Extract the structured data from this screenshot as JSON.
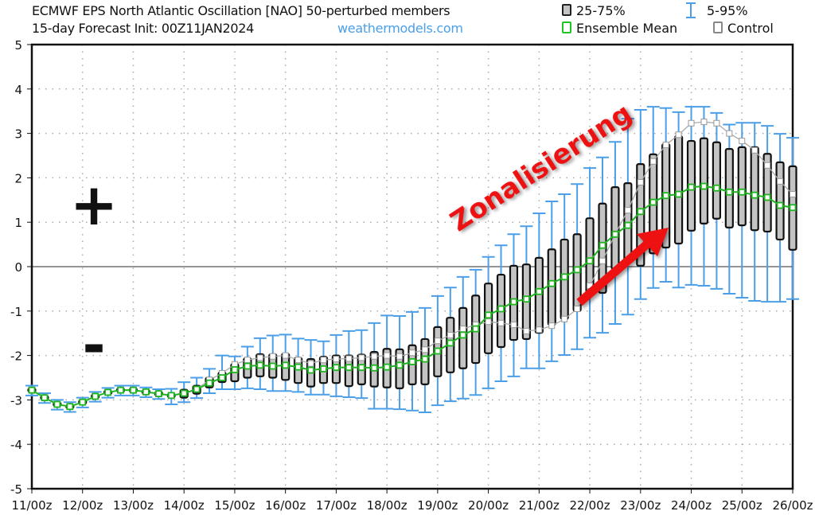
{
  "title_line1": "ECMWF EPS North Atlantic Oscillation [NAO]  50-perturbed members",
  "title_line2": "15-day Forecast Init: 00Z11JAN2024",
  "source": "weathermodels.com",
  "legend": {
    "box": "25-75%",
    "whisker": "5-95%",
    "mean": "Ensemble Mean",
    "control": "Control"
  },
  "colors": {
    "whisker": "#4a9fe8",
    "mean": "#22b322",
    "box_fill": "#c4c4c4",
    "control": "#aaaaaa",
    "annotation": "#ee1111",
    "source": "#4a9fe8"
  },
  "annotations": {
    "text": "Zonalisierung",
    "plus": "+",
    "minus": "-"
  },
  "chart_data": {
    "type": "box",
    "title": "ECMWF EPS North Atlantic Oscillation [NAO]",
    "xlabel": "",
    "ylabel": "",
    "ylim": [
      -5,
      5
    ],
    "yticks": [
      "-5",
      "-4",
      "-3",
      "-2",
      "-1",
      "0",
      "1",
      "2",
      "3",
      "4",
      "5"
    ],
    "xticks": [
      "11/00z",
      "12/00z",
      "13/00z",
      "14/00z",
      "15/00z",
      "16/00z",
      "17/00z",
      "18/00z",
      "19/00z",
      "20/00z",
      "21/00z",
      "22/00z",
      "23/00z",
      "24/00z",
      "25/00z",
      "26/00z"
    ],
    "step_hours": 6,
    "grid": true,
    "mean": [
      -2.78,
      -2.95,
      -3.1,
      -3.15,
      -3.05,
      -2.92,
      -2.83,
      -2.78,
      -2.78,
      -2.82,
      -2.86,
      -2.9,
      -2.85,
      -2.76,
      -2.62,
      -2.5,
      -2.32,
      -2.24,
      -2.22,
      -2.24,
      -2.22,
      -2.26,
      -2.33,
      -2.3,
      -2.27,
      -2.27,
      -2.27,
      -2.28,
      -2.26,
      -2.22,
      -2.14,
      -2.08,
      -1.9,
      -1.72,
      -1.54,
      -1.4,
      -1.09,
      -0.95,
      -0.79,
      -0.73,
      -0.56,
      -0.38,
      -0.23,
      -0.07,
      0.13,
      0.48,
      0.73,
      0.93,
      1.24,
      1.45,
      1.6,
      1.63,
      1.79,
      1.81,
      1.77,
      1.68,
      1.68,
      1.61,
      1.56,
      1.38,
      1.33
    ],
    "control": [
      -2.78,
      -2.95,
      -3.1,
      -3.15,
      -3.05,
      -2.92,
      -2.83,
      -2.78,
      -2.78,
      -2.82,
      -2.86,
      -2.9,
      -2.85,
      -2.76,
      -2.55,
      -2.4,
      -2.2,
      -2.1,
      -2.05,
      -2.02,
      -2.0,
      -2.1,
      -2.18,
      -2.1,
      -2.08,
      -2.07,
      -2.05,
      -2.02,
      -2.0,
      -2.02,
      -1.94,
      -1.87,
      -1.67,
      -1.54,
      -1.4,
      -1.31,
      -1.24,
      -1.27,
      -1.31,
      -1.45,
      -1.42,
      -1.33,
      -1.18,
      -0.95,
      -0.43,
      0.13,
      0.73,
      1.27,
      1.9,
      2.37,
      2.74,
      2.97,
      3.23,
      3.26,
      3.23,
      3.0,
      2.83,
      2.62,
      2.28,
      1.92,
      1.63
    ],
    "p75": [
      -2.74,
      -2.91,
      -3.06,
      -3.11,
      -3.01,
      -2.88,
      -2.79,
      -2.74,
      -2.74,
      -2.78,
      -2.82,
      -2.86,
      -2.77,
      -2.68,
      -2.5,
      -2.38,
      -2.19,
      -2.06,
      -1.97,
      -1.97,
      -1.96,
      -2.05,
      -2.08,
      -2.03,
      -2.0,
      -2.0,
      -1.98,
      -1.92,
      -1.85,
      -1.86,
      -1.77,
      -1.63,
      -1.36,
      -1.15,
      -0.93,
      -0.65,
      -0.38,
      -0.18,
      0.02,
      0.05,
      0.2,
      0.39,
      0.61,
      0.73,
      1.09,
      1.42,
      1.79,
      1.88,
      2.31,
      2.53,
      2.76,
      2.94,
      2.83,
      2.89,
      2.8,
      2.65,
      2.69,
      2.69,
      2.54,
      2.35,
      2.26
    ],
    "p25": [
      -2.82,
      -2.99,
      -3.14,
      -3.19,
      -3.09,
      -2.96,
      -2.87,
      -2.82,
      -2.82,
      -2.86,
      -2.9,
      -2.94,
      -2.95,
      -2.86,
      -2.72,
      -2.6,
      -2.58,
      -2.5,
      -2.47,
      -2.5,
      -2.55,
      -2.62,
      -2.7,
      -2.62,
      -2.62,
      -2.69,
      -2.65,
      -2.7,
      -2.72,
      -2.74,
      -2.65,
      -2.65,
      -2.47,
      -2.38,
      -2.29,
      -2.17,
      -1.95,
      -1.81,
      -1.65,
      -1.63,
      -1.49,
      -1.31,
      -1.18,
      -1.0,
      -0.59,
      -0.59,
      -0.05,
      0.13,
      0.02,
      0.3,
      0.43,
      0.52,
      0.81,
      0.97,
      1.08,
      0.88,
      0.93,
      0.82,
      0.79,
      0.61,
      0.38
    ],
    "p95": [
      -2.68,
      -2.85,
      -3.0,
      -3.05,
      -2.95,
      -2.82,
      -2.73,
      -2.68,
      -2.68,
      -2.72,
      -2.76,
      -2.75,
      -2.6,
      -2.5,
      -2.3,
      -2.0,
      -2.02,
      -1.8,
      -1.61,
      -1.55,
      -1.53,
      -1.62,
      -1.65,
      -1.68,
      -1.54,
      -1.45,
      -1.43,
      -1.27,
      -1.1,
      -1.11,
      -1.02,
      -0.93,
      -0.66,
      -0.47,
      -0.23,
      -0.07,
      0.22,
      0.48,
      0.73,
      0.91,
      1.2,
      1.47,
      1.63,
      1.86,
      2.22,
      2.46,
      2.81,
      3.33,
      3.53,
      3.6,
      3.57,
      3.48,
      3.6,
      3.6,
      3.46,
      3.2,
      3.24,
      3.24,
      3.17,
      2.99,
      2.9
    ],
    "p5": [
      -2.9,
      -3.07,
      -3.22,
      -3.27,
      -3.17,
      -3.04,
      -2.95,
      -2.9,
      -2.9,
      -2.94,
      -2.98,
      -3.1,
      -3.05,
      -2.96,
      -2.85,
      -2.76,
      -2.76,
      -2.74,
      -2.76,
      -2.8,
      -2.8,
      -2.82,
      -2.88,
      -2.88,
      -2.92,
      -2.94,
      -2.96,
      -3.2,
      -3.2,
      -3.21,
      -3.24,
      -3.28,
      -3.12,
      -3.03,
      -2.97,
      -2.89,
      -2.74,
      -2.58,
      -2.47,
      -2.29,
      -2.29,
      -2.13,
      -1.99,
      -1.86,
      -1.6,
      -1.49,
      -1.29,
      -1.08,
      -0.73,
      -0.48,
      -0.34,
      -0.47,
      -0.41,
      -0.43,
      -0.5,
      -0.61,
      -0.7,
      -0.77,
      -0.79,
      -0.79,
      -0.73
    ]
  }
}
